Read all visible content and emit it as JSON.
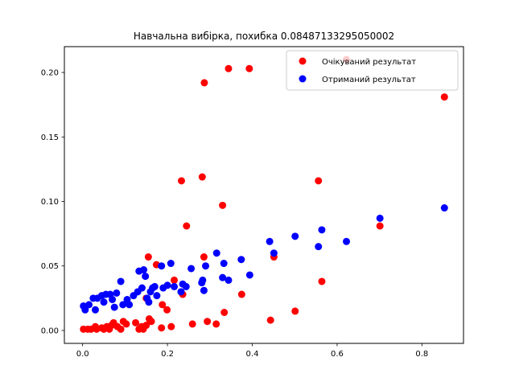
{
  "chart_data": {
    "type": "scatter",
    "title": "Навчальна вибірка, похибка 0.08487133295050002",
    "xlabel": "",
    "ylabel": "",
    "xlim": [
      -0.043,
      0.898
    ],
    "ylim": [
      -0.01,
      0.22
    ],
    "xticks": [
      0.0,
      0.2,
      0.4,
      0.6,
      0.8
    ],
    "xtick_labels": [
      "0.0",
      "0.2",
      "0.4",
      "0.6",
      "0.8"
    ],
    "yticks": [
      0.0,
      0.05,
      0.1,
      0.15,
      0.2
    ],
    "ytick_labels": [
      "0.00",
      "0.05",
      "0.10",
      "0.15",
      "0.20"
    ],
    "grid": false,
    "legend_position": "top-right",
    "series": [
      {
        "name": "Очікуваний результат",
        "color": "#ff0000",
        "points": [
          [
            0.002,
            0.001
          ],
          [
            0.012,
            0.001
          ],
          [
            0.02,
            0.001
          ],
          [
            0.03,
            0.003
          ],
          [
            0.033,
            0.001
          ],
          [
            0.045,
            0.002
          ],
          [
            0.05,
            0.001
          ],
          [
            0.057,
            0.003
          ],
          [
            0.063,
            0.001
          ],
          [
            0.068,
            0.004
          ],
          [
            0.073,
            0.006
          ],
          [
            0.082,
            0.003
          ],
          [
            0.09,
            0.001
          ],
          [
            0.096,
            0.007
          ],
          [
            0.103,
            0.005
          ],
          [
            0.125,
            0.006
          ],
          [
            0.133,
            0.001
          ],
          [
            0.139,
            0.003
          ],
          [
            0.143,
            0.001
          ],
          [
            0.15,
            0.004
          ],
          [
            0.15,
            0.025
          ],
          [
            0.157,
            0.009
          ],
          [
            0.162,
            0.007
          ],
          [
            0.155,
            0.057
          ],
          [
            0.174,
            0.051
          ],
          [
            0.186,
            0.002
          ],
          [
            0.188,
            0.02
          ],
          [
            0.199,
            0.016
          ],
          [
            0.209,
            0.003
          ],
          [
            0.216,
            0.039
          ],
          [
            0.236,
            0.028
          ],
          [
            0.233,
            0.116
          ],
          [
            0.245,
            0.081
          ],
          [
            0.259,
            0.005
          ],
          [
            0.282,
            0.119
          ],
          [
            0.287,
            0.192
          ],
          [
            0.286,
            0.057
          ],
          [
            0.294,
            0.007
          ],
          [
            0.315,
            0.005
          ],
          [
            0.33,
            0.097
          ],
          [
            0.334,
            0.014
          ],
          [
            0.344,
            0.203
          ],
          [
            0.375,
            0.028
          ],
          [
            0.393,
            0.203
          ],
          [
            0.443,
            0.008
          ],
          [
            0.451,
            0.057
          ],
          [
            0.501,
            0.015
          ],
          [
            0.556,
            0.116
          ],
          [
            0.564,
            0.038
          ],
          [
            0.622,
            0.21
          ],
          [
            0.701,
            0.081
          ],
          [
            0.853,
            0.181
          ]
        ]
      },
      {
        "name": "Отриманий результат",
        "color": "#0000ff",
        "points": [
          [
            0.002,
            0.019
          ],
          [
            0.006,
            0.016
          ],
          [
            0.015,
            0.02
          ],
          [
            0.025,
            0.025
          ],
          [
            0.03,
            0.016
          ],
          [
            0.035,
            0.025
          ],
          [
            0.045,
            0.027
          ],
          [
            0.05,
            0.022
          ],
          [
            0.055,
            0.028
          ],
          [
            0.065,
            0.028
          ],
          [
            0.07,
            0.024
          ],
          [
            0.075,
            0.018
          ],
          [
            0.08,
            0.029
          ],
          [
            0.09,
            0.038
          ],
          [
            0.095,
            0.02
          ],
          [
            0.105,
            0.024
          ],
          [
            0.11,
            0.02
          ],
          [
            0.12,
            0.027
          ],
          [
            0.13,
            0.03
          ],
          [
            0.133,
            0.046
          ],
          [
            0.14,
            0.033
          ],
          [
            0.144,
            0.047
          ],
          [
            0.148,
            0.042
          ],
          [
            0.152,
            0.025
          ],
          [
            0.156,
            0.022
          ],
          [
            0.16,
            0.03
          ],
          [
            0.165,
            0.033
          ],
          [
            0.17,
            0.034
          ],
          [
            0.175,
            0.027
          ],
          [
            0.186,
            0.05
          ],
          [
            0.19,
            0.033
          ],
          [
            0.2,
            0.035
          ],
          [
            0.208,
            0.052
          ],
          [
            0.216,
            0.034
          ],
          [
            0.232,
            0.03
          ],
          [
            0.236,
            0.036
          ],
          [
            0.244,
            0.034
          ],
          [
            0.256,
            0.048
          ],
          [
            0.281,
            0.037
          ],
          [
            0.283,
            0.039
          ],
          [
            0.286,
            0.031
          ],
          [
            0.29,
            0.05
          ],
          [
            0.316,
            0.06
          ],
          [
            0.33,
            0.041
          ],
          [
            0.333,
            0.052
          ],
          [
            0.344,
            0.039
          ],
          [
            0.374,
            0.055
          ],
          [
            0.394,
            0.043
          ],
          [
            0.441,
            0.069
          ],
          [
            0.451,
            0.06
          ],
          [
            0.501,
            0.073
          ],
          [
            0.556,
            0.065
          ],
          [
            0.564,
            0.078
          ],
          [
            0.622,
            0.069
          ],
          [
            0.701,
            0.087
          ],
          [
            0.853,
            0.095
          ]
        ]
      }
    ]
  }
}
